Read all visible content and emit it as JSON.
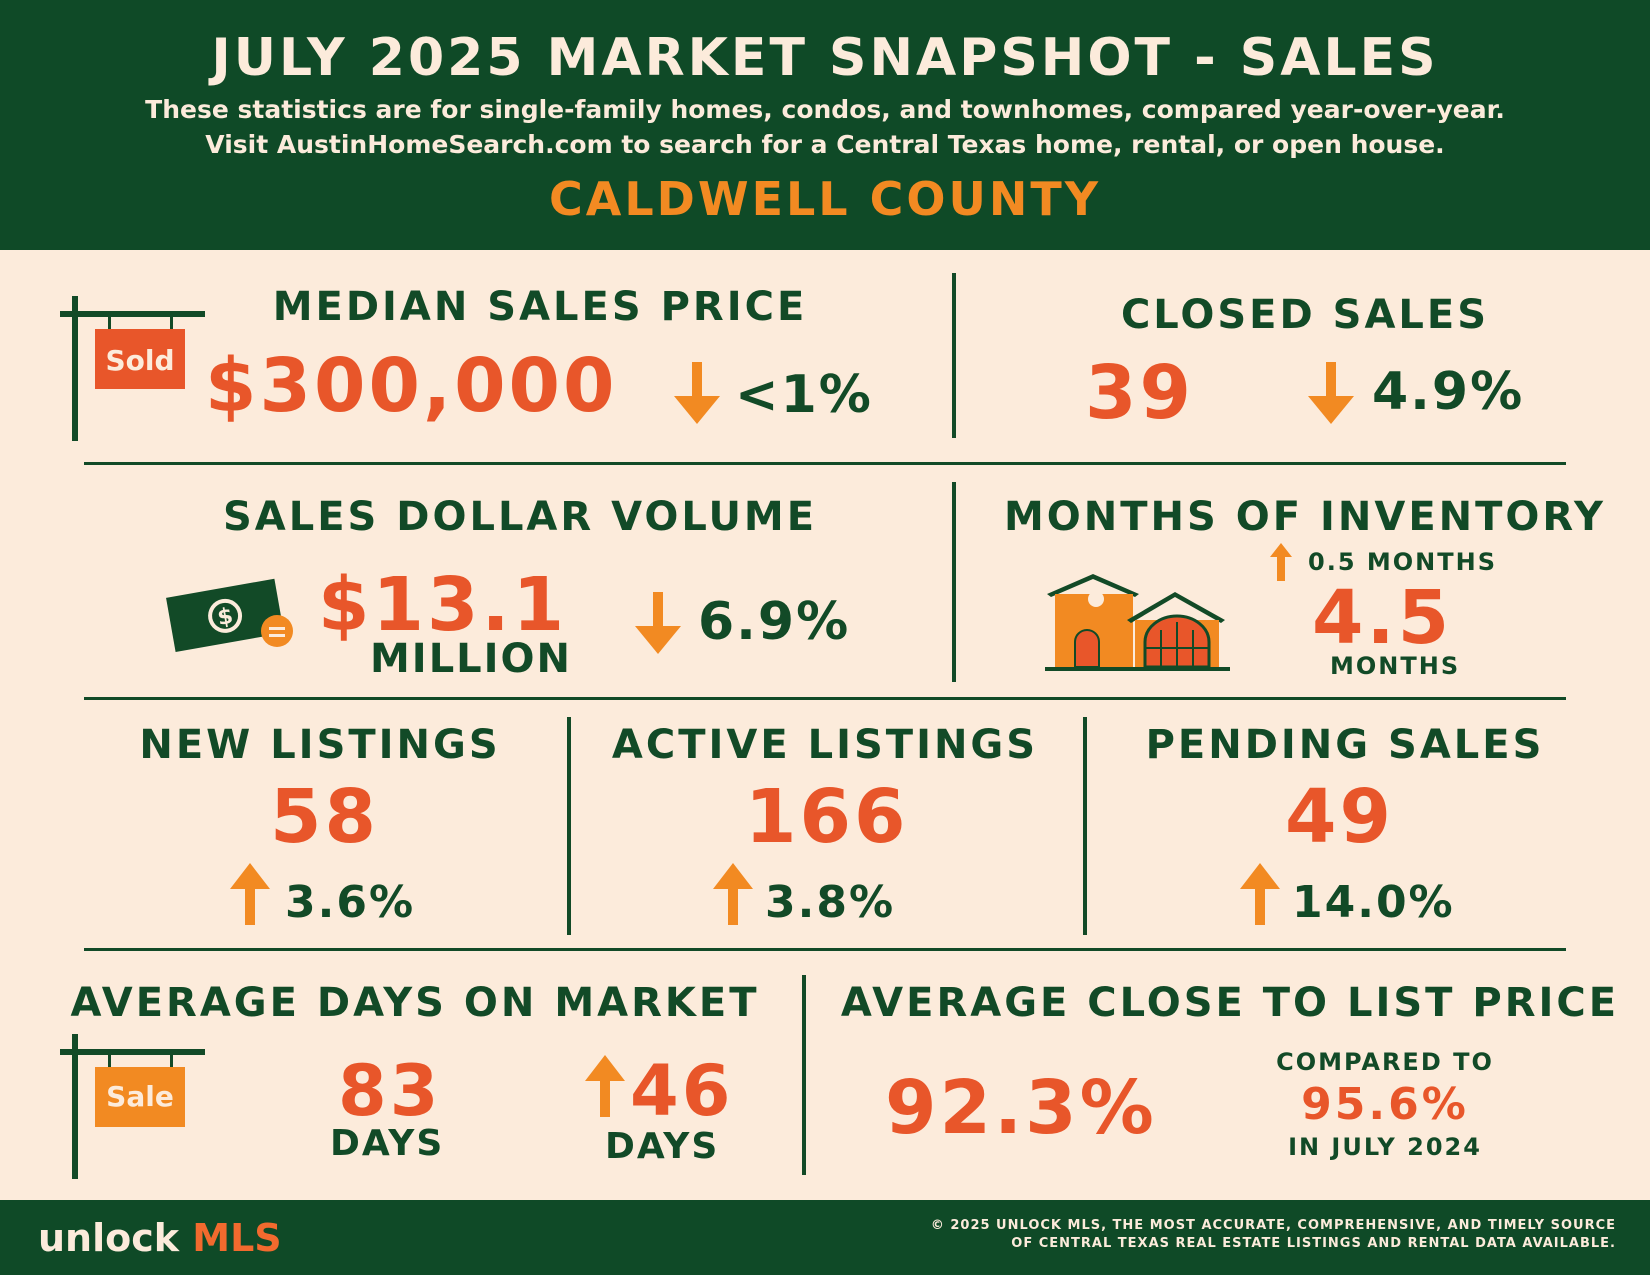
{
  "header": {
    "title": "JULY 2025 MARKET SNAPSHOT - SALES",
    "subtitle_line1": "These statistics are for single-family homes, condos, and townhomes, compared year-over-year.",
    "subtitle_line2": "Visit AustinHomeSearch.com to search for a Central Texas home, rental, or open house.",
    "county": "CALDWELL COUNTY"
  },
  "median_sales_price": {
    "label": "MEDIAN SALES PRICE",
    "value": "$300,000",
    "change": "<1%",
    "direction": "down",
    "sign_text": "Sold"
  },
  "closed_sales": {
    "label": "CLOSED SALES",
    "value": "39",
    "change": "4.9%",
    "direction": "down"
  },
  "sales_dollar_volume": {
    "label": "SALES DOLLAR VOLUME",
    "value": "$13.1",
    "unit": "MILLION",
    "change": "6.9%",
    "direction": "down"
  },
  "months_of_inventory": {
    "label": "MONTHS OF INVENTORY",
    "change": "0.5 MONTHS",
    "direction": "up",
    "value": "4.5",
    "unit": "MONTHS"
  },
  "new_listings": {
    "label": "NEW LISTINGS",
    "value": "58",
    "change": "3.6%",
    "direction": "up"
  },
  "active_listings": {
    "label": "ACTIVE LISTINGS",
    "value": "166",
    "change": "3.8%",
    "direction": "up"
  },
  "pending_sales": {
    "label": "PENDING SALES",
    "value": "49",
    "change": "14.0%",
    "direction": "up"
  },
  "avg_days_on_market": {
    "label": "AVERAGE DAYS ON MARKET",
    "value": "83",
    "unit": "DAYS",
    "change": "46",
    "change_unit": "DAYS",
    "direction": "up",
    "sign_text": "Sale"
  },
  "avg_close_to_list": {
    "label": "AVERAGE CLOSE TO LIST PRICE",
    "value": "92.3%",
    "compared_label": "COMPARED TO",
    "compared_value": "95.6%",
    "compared_period": "IN JULY 2024"
  },
  "footer": {
    "logo_part1": "unlock ",
    "logo_part2": "MLS",
    "copyright_line1": "© 2025 UNLOCK MLS, THE MOST ACCURATE, COMPREHENSIVE, AND TIMELY SOURCE",
    "copyright_line2": "OF CENTRAL TEXAS REAL ESTATE LISTINGS AND RENTAL DATA AVAILABLE."
  },
  "colors": {
    "dark_green": "#0f4a27",
    "cream": "#fcebdb",
    "orange": "#f28a22",
    "red_orange": "#e8562a"
  }
}
